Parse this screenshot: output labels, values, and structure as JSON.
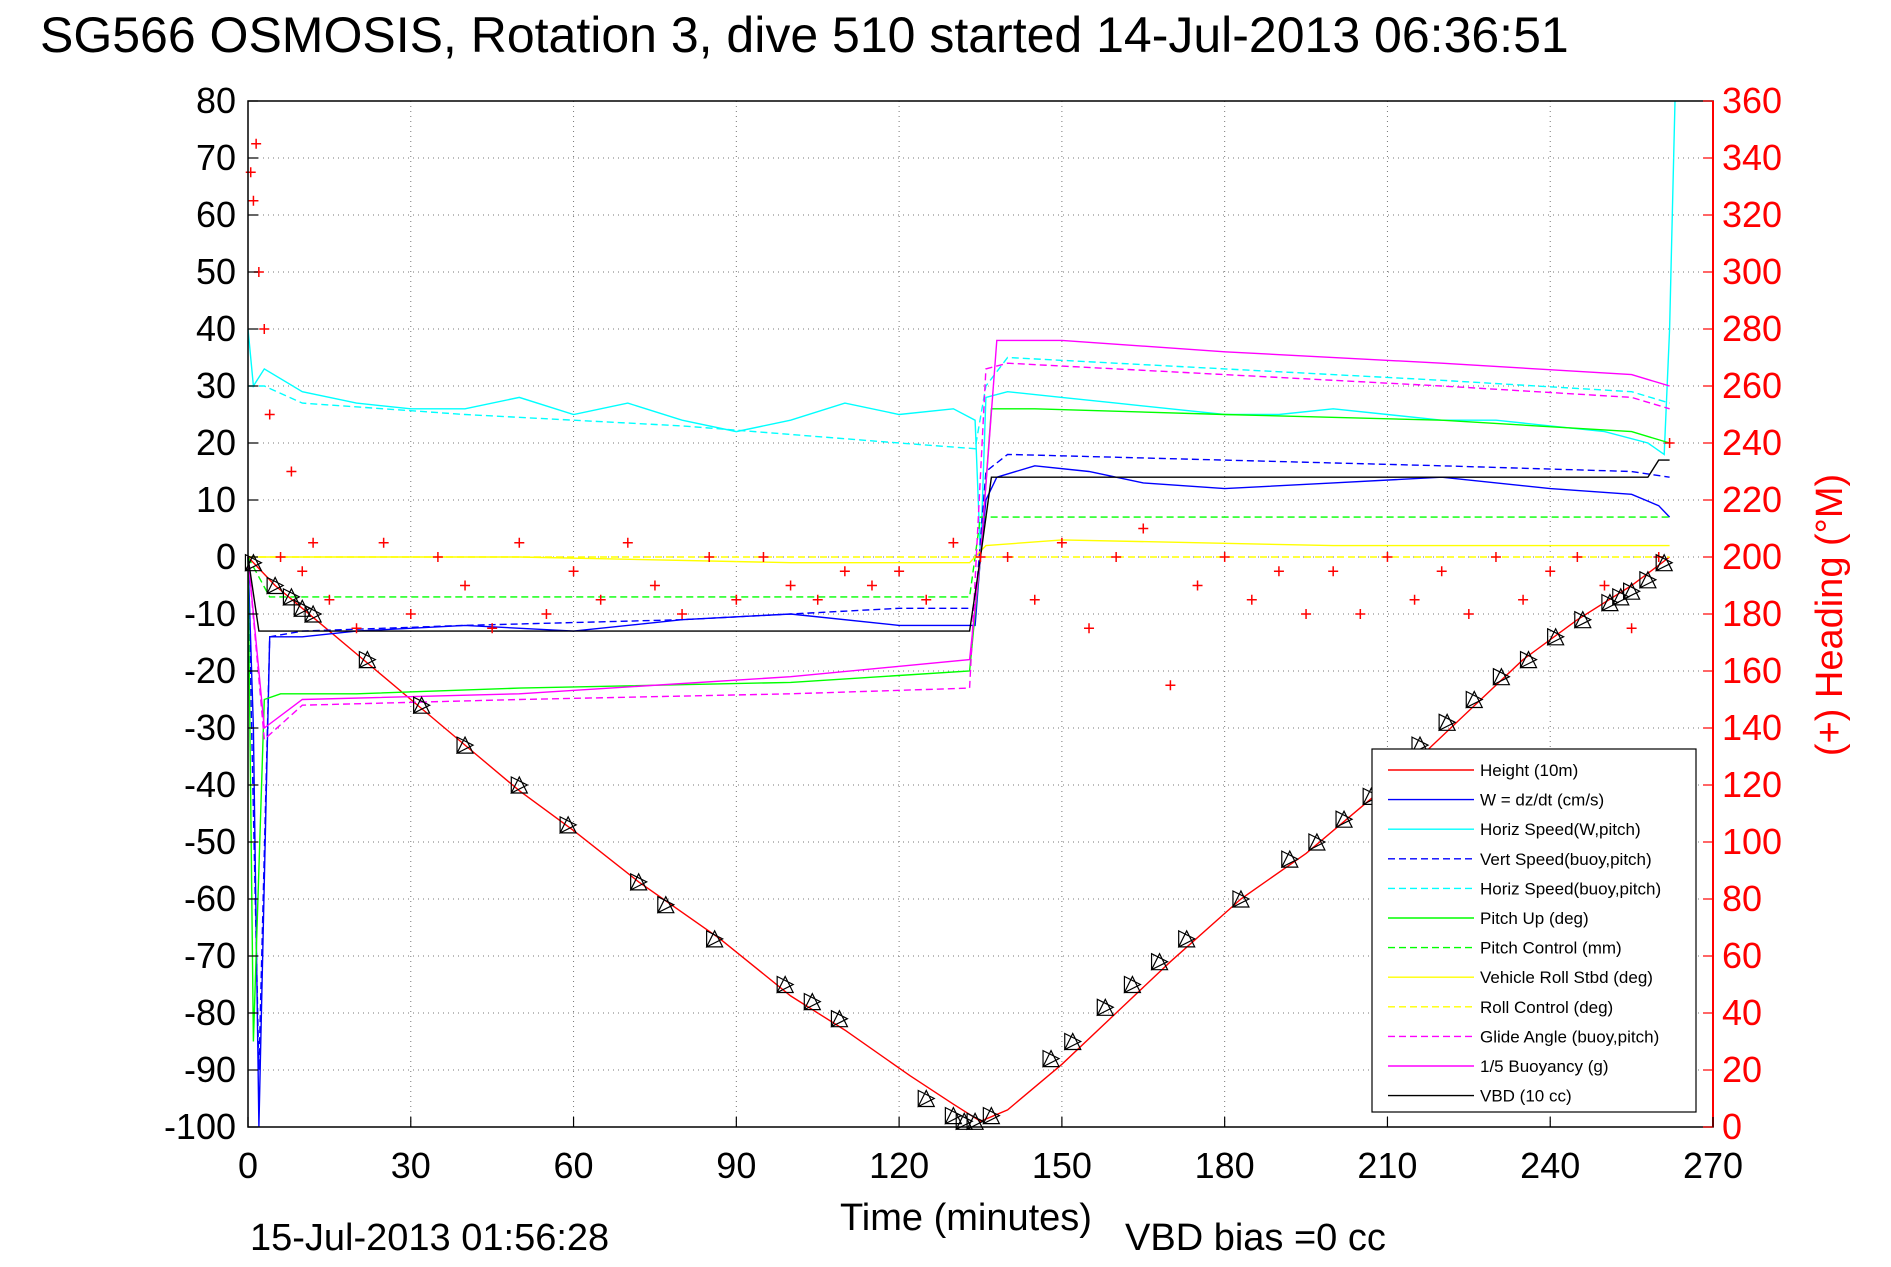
{
  "chart_data": {
    "type": "line",
    "title": "SG566 OSMOSIS, Rotation 3, dive 510 started 14-Jul-2013 06:36:51",
    "xlabel": "Time (minutes)",
    "ylabel": "",
    "y2label": "(+) Heading (°M)",
    "footer_left": "15-Jul-2013 01:56:28",
    "footer_right": "VBD bias =0 cc",
    "xlim": [
      0,
      270
    ],
    "ylim": [
      -100,
      80
    ],
    "y2lim": [
      0,
      360
    ],
    "xticks": [
      0,
      30,
      60,
      90,
      120,
      150,
      180,
      210,
      240,
      270
    ],
    "yticks": [
      -100,
      -90,
      -80,
      -70,
      -60,
      -50,
      -40,
      -30,
      -20,
      -10,
      0,
      10,
      20,
      30,
      40,
      50,
      60,
      70,
      80
    ],
    "y2ticks": [
      0,
      20,
      40,
      60,
      80,
      100,
      120,
      140,
      160,
      180,
      200,
      220,
      240,
      260,
      280,
      300,
      320,
      340,
      360
    ],
    "grid": true,
    "legend_position": "bottom-right",
    "colors": {
      "red": "#ff0000",
      "blue": "#0000ff",
      "cyan": "#00ffff",
      "green": "#00ff00",
      "yellow": "#ffff00",
      "magenta": "#ff00ff",
      "black": "#000000"
    },
    "series": [
      {
        "name": "Height (10m)",
        "color": "#ff0000",
        "style": "solid",
        "x": [
          0,
          5,
          10,
          20,
          30,
          40,
          50,
          60,
          72,
          87,
          100,
          110,
          122,
          130,
          135,
          140,
          150,
          160,
          170,
          183,
          195,
          205,
          215,
          225,
          235,
          245,
          255,
          262
        ],
        "y": [
          0,
          -5,
          -9,
          -17,
          -25,
          -33,
          -41,
          -48,
          -57,
          -67,
          -77,
          -83,
          -91,
          -96,
          -99,
          -97,
          -89,
          -80,
          -71,
          -60,
          -52,
          -44,
          -36,
          -27,
          -18,
          -11,
          -5,
          0
        ]
      },
      {
        "name": "W = dz/dt (cm/s)",
        "color": "#0000ff",
        "style": "solid",
        "x": [
          0,
          1,
          2,
          4,
          10,
          20,
          40,
          60,
          80,
          100,
          120,
          130,
          134,
          135,
          136,
          138,
          145,
          155,
          165,
          180,
          200,
          220,
          240,
          255,
          260,
          262
        ],
        "y": [
          0,
          -30,
          -100,
          -14,
          -14,
          -13,
          -12,
          -13,
          -11,
          -10,
          -12,
          -12,
          -12,
          0,
          10,
          14,
          16,
          15,
          13,
          12,
          13,
          14,
          12,
          11,
          9,
          7
        ]
      },
      {
        "name": "Horiz Speed(W,pitch)",
        "color": "#00ffff",
        "style": "solid",
        "x": [
          0,
          1,
          3,
          10,
          20,
          30,
          40,
          50,
          60,
          70,
          80,
          90,
          100,
          110,
          120,
          130,
          134,
          135,
          136,
          140,
          150,
          160,
          170,
          180,
          190,
          200,
          210,
          220,
          230,
          240,
          250,
          258,
          261,
          262,
          263
        ],
        "y": [
          40,
          30,
          33,
          29,
          27,
          26,
          26,
          28,
          25,
          27,
          24,
          22,
          24,
          27,
          25,
          26,
          24,
          0,
          28,
          29,
          28,
          27,
          26,
          25,
          25,
          26,
          25,
          24,
          24,
          23,
          22,
          20,
          18,
          40,
          80
        ]
      },
      {
        "name": "Vert Speed(buoy,pitch)",
        "color": "#0000ff",
        "style": "dashed",
        "x": [
          0,
          2,
          4,
          10,
          40,
          80,
          120,
          134,
          136,
          140,
          180,
          220,
          255,
          262
        ],
        "y": [
          0,
          -90,
          -14,
          -13,
          -12,
          -11,
          -9,
          -9,
          15,
          18,
          17,
          16,
          15,
          14
        ]
      },
      {
        "name": "Horiz Speed(buoy,pitch)",
        "color": "#00ffff",
        "style": "dashed",
        "x": [
          0,
          3,
          10,
          40,
          80,
          120,
          134,
          136,
          140,
          180,
          220,
          255,
          262
        ],
        "y": [
          30,
          30,
          27,
          25,
          23,
          20,
          19,
          30,
          35,
          33,
          31,
          29,
          27
        ]
      },
      {
        "name": "Pitch Up (deg)",
        "color": "#00ff00",
        "style": "solid",
        "x": [
          0,
          1,
          3,
          6,
          20,
          50,
          100,
          133,
          135,
          137,
          145,
          180,
          220,
          255,
          262
        ],
        "y": [
          0,
          -85,
          -25,
          -24,
          -24,
          -23,
          -22,
          -20,
          0,
          26,
          26,
          25,
          24,
          22,
          20
        ]
      },
      {
        "name": "Pitch Control (mm)",
        "color": "#00ff00",
        "style": "dashed",
        "x": [
          0,
          4,
          133,
          135,
          262
        ],
        "y": [
          0,
          -7,
          -7,
          7,
          7
        ]
      },
      {
        "name": "Vehicle Roll Stbd (deg)",
        "color": "#ffff00",
        "style": "solid",
        "x": [
          0,
          5,
          50,
          100,
          133,
          136,
          150,
          200,
          262
        ],
        "y": [
          0,
          0,
          0,
          -1,
          -1,
          2,
          3,
          2,
          2
        ]
      },
      {
        "name": "Roll Control (deg)",
        "color": "#ffff00",
        "style": "dashed",
        "x": [
          0,
          5,
          50,
          100,
          133,
          136,
          150,
          200,
          262
        ],
        "y": [
          0,
          0,
          0,
          0,
          0,
          0,
          0,
          0,
          0
        ]
      },
      {
        "name": "Glide Angle (buoy,pitch)",
        "color": "#ff00ff",
        "style": "dashed",
        "x": [
          0,
          3,
          10,
          50,
          100,
          133,
          136,
          140,
          180,
          220,
          255,
          262
        ],
        "y": [
          0,
          -32,
          -26,
          -25,
          -24,
          -23,
          33,
          34,
          32,
          30,
          28,
          26
        ]
      },
      {
        "name": "1/5 Buoyancy (g)",
        "color": "#ff00ff",
        "style": "solid",
        "x": [
          0,
          3,
          10,
          50,
          100,
          133,
          135,
          138,
          150,
          180,
          220,
          255,
          262
        ],
        "y": [
          0,
          -30,
          -25,
          -24,
          -21,
          -18,
          0,
          38,
          38,
          36,
          34,
          32,
          30
        ]
      },
      {
        "name": "VBD (10 cc)",
        "color": "#000000",
        "style": "solid",
        "x": [
          0,
          2,
          10,
          30,
          60,
          100,
          133,
          135,
          137,
          160,
          200,
          230,
          258,
          260,
          262
        ],
        "y": [
          0,
          -13,
          -13,
          -13,
          -13,
          -13,
          -13,
          0,
          14,
          14,
          14,
          14,
          14,
          17,
          17
        ]
      }
    ],
    "heading_series": {
      "name": "(+) Heading",
      "axis": "right",
      "marker": "+",
      "color": "#ff0000",
      "x": [
        0.5,
        1,
        1.5,
        2,
        3,
        4,
        6,
        8,
        10,
        12,
        15,
        20,
        25,
        30,
        35,
        40,
        45,
        50,
        55,
        60,
        65,
        70,
        75,
        80,
        85,
        90,
        95,
        100,
        105,
        110,
        115,
        120,
        125,
        130,
        135,
        140,
        145,
        150,
        155,
        160,
        165,
        170,
        175,
        180,
        185,
        190,
        195,
        200,
        205,
        210,
        215,
        220,
        225,
        230,
        235,
        240,
        245,
        250,
        255,
        260,
        262
      ],
      "y": [
        335,
        325,
        345,
        300,
        280,
        250,
        200,
        230,
        195,
        205,
        185,
        175,
        205,
        180,
        200,
        190,
        175,
        205,
        180,
        195,
        185,
        205,
        190,
        180,
        200,
        185,
        200,
        190,
        185,
        195,
        190,
        195,
        185,
        205,
        200,
        200,
        185,
        205,
        175,
        200,
        210,
        155,
        190,
        200,
        185,
        195,
        180,
        195,
        180,
        200,
        185,
        195,
        180,
        200,
        185,
        195,
        200,
        190,
        175,
        200,
        240
      ]
    },
    "depth_markers": {
      "marker": "triangle",
      "color": "#000000",
      "x": [
        1,
        5,
        8,
        10,
        12,
        22,
        32,
        40,
        50,
        59,
        72,
        77,
        86,
        99,
        104,
        109,
        125,
        130,
        132,
        134,
        137,
        148,
        152,
        158,
        163,
        168,
        173,
        183,
        192,
        197,
        202,
        207,
        216,
        221,
        226,
        231,
        236,
        241,
        246,
        251,
        253,
        255,
        258,
        261
      ],
      "y": [
        -1,
        -5,
        -7,
        -9,
        -10,
        -18,
        -26,
        -33,
        -40,
        -47,
        -57,
        -61,
        -67,
        -75,
        -78,
        -81,
        -95,
        -98,
        -99,
        -99,
        -98,
        -88,
        -85,
        -79,
        -75,
        -71,
        -67,
        -60,
        -53,
        -50,
        -46,
        -42,
        -33,
        -29,
        -25,
        -21,
        -18,
        -14,
        -11,
        -8,
        -7,
        -6,
        -4,
        -1
      ]
    },
    "legend": [
      {
        "label": "Height (10m)",
        "color": "#ff0000",
        "style": "solid"
      },
      {
        "label": "W = dz/dt (cm/s)",
        "color": "#0000ff",
        "style": "solid"
      },
      {
        "label": "Horiz Speed(W,pitch)",
        "color": "#00ffff",
        "style": "solid"
      },
      {
        "label": "Vert Speed(buoy,pitch)",
        "color": "#0000ff",
        "style": "dashed"
      },
      {
        "label": "Horiz Speed(buoy,pitch)",
        "color": "#00ffff",
        "style": "dashed"
      },
      {
        "label": "Pitch Up (deg)",
        "color": "#00ff00",
        "style": "solid"
      },
      {
        "label": "Pitch Control (mm)",
        "color": "#00ff00",
        "style": "dashed"
      },
      {
        "label": "Vehicle Roll Stbd (deg)",
        "color": "#ffff00",
        "style": "solid"
      },
      {
        "label": "Roll Control (deg)",
        "color": "#ffff00",
        "style": "dashed"
      },
      {
        "label": "Glide Angle (buoy,pitch)",
        "color": "#ff00ff",
        "style": "dashed"
      },
      {
        "label": "1/5 Buoyancy (g)",
        "color": "#ff00ff",
        "style": "solid"
      },
      {
        "label": "VBD (10 cc)",
        "color": "#000000",
        "style": "solid"
      }
    ]
  }
}
